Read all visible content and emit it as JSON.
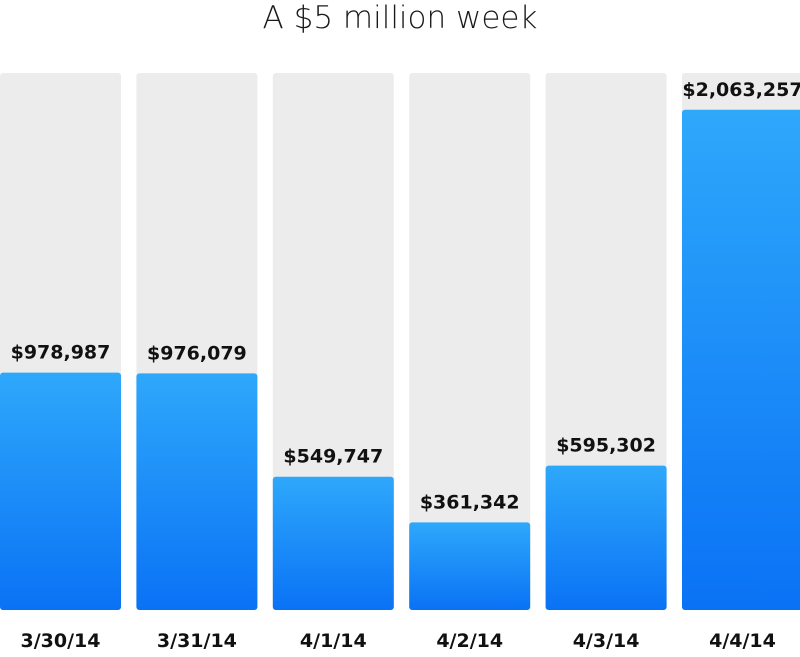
{
  "chart_data": {
    "type": "bar",
    "title": "A $5 million week",
    "categories": [
      "3/30/14",
      "3/31/14",
      "4/1/14",
      "4/2/14",
      "4/3/14",
      "4/4/14"
    ],
    "values": [
      978987,
      976079,
      549747,
      361342,
      595302,
      2063257
    ],
    "value_labels": [
      "$978,987",
      "$976,079",
      "$549,747",
      "$361,342",
      "$595,302",
      "$2,063,257"
    ],
    "ylim": [
      0,
      2215000
    ],
    "xlabel": "",
    "ylabel": "",
    "grid": false,
    "legend": "none",
    "colors": {
      "bar_top": "#2ea8fb",
      "bar_bottom": "#0a72f5",
      "track": "#ececec",
      "label": "#111111"
    }
  }
}
